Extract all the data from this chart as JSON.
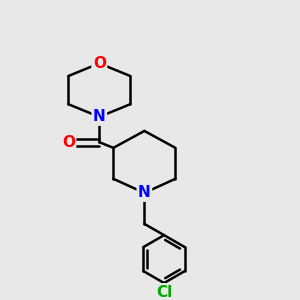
{
  "bg_color": "#e8e8e8",
  "atom_colors": {
    "O": "#ff0000",
    "N": "#0000ff",
    "Cl": "#00aa00",
    "C": "#000000"
  },
  "bond_color": "#000000",
  "bond_width": 1.8,
  "font_size_atom": 11,
  "fig_size": [
    3.0,
    3.0
  ],
  "dpi": 100
}
